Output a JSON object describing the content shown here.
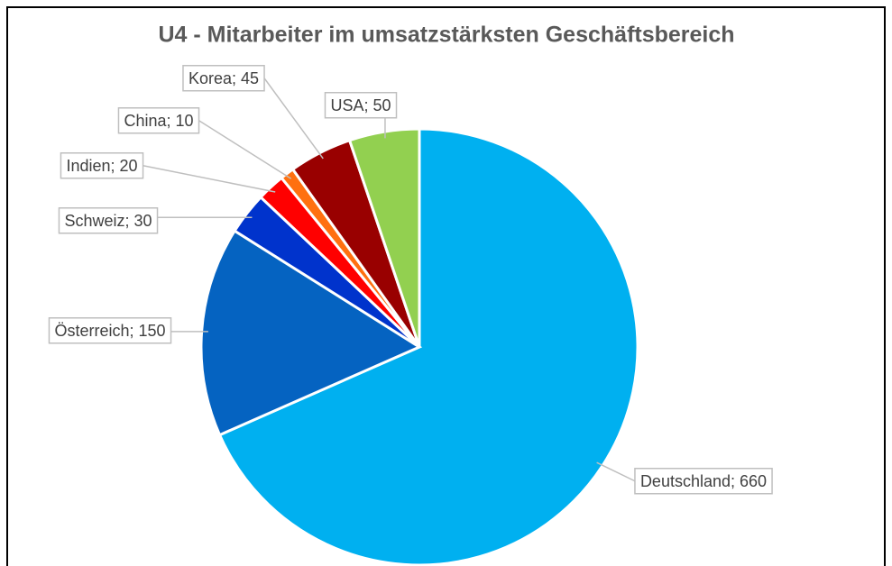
{
  "chart_data": {
    "type": "pie",
    "title": "U4 - Mitarbeiter im umsatzstärksten Geschäftsbereich",
    "values": [
      660,
      150,
      30,
      20,
      10,
      45,
      50
    ],
    "value_labels": [
      "Deutschland; 660",
      "Österreich; 150",
      "Schweiz; 30",
      "Indien; 20",
      "China; 10",
      "Korea; 45",
      "USA; 50"
    ],
    "colors": [
      "#00b0f0",
      "#0563c1",
      "#0033cc",
      "#ff0000",
      "#ff7010",
      "#990000",
      "#92d050"
    ]
  }
}
